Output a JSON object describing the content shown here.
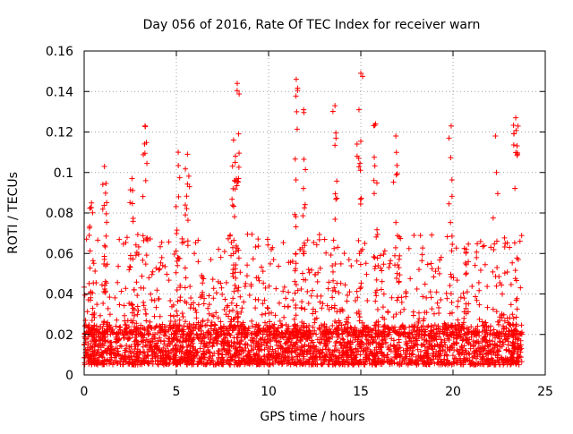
{
  "colors": {
    "series": "#ff0000",
    "axis": "#000000",
    "grid": "#a0a0a0",
    "background": "#ffffff"
  },
  "chart_data": {
    "type": "scatter",
    "title": "Day 056 of 2016, Rate Of TEC Index for receiver warn",
    "xlabel": "GPS time / hours",
    "ylabel": "ROTI / TECUs",
    "xlim": [
      0,
      25
    ],
    "ylim": [
      0,
      0.16
    ],
    "xticks": [
      0,
      5,
      10,
      15,
      20,
      25
    ],
    "yticks": [
      0,
      0.02,
      0.04,
      0.06,
      0.08,
      0.1,
      0.12,
      0.14,
      0.16
    ],
    "xtick_labels": [
      "0",
      "5",
      "10",
      "15",
      "20",
      "25"
    ],
    "ytick_labels": [
      "0",
      "0.02",
      "0.04",
      "0.06",
      "0.08",
      "0.1",
      "0.12",
      "0.14",
      "0.16"
    ],
    "grid": true,
    "marker": "+",
    "series": [
      {
        "name": "ROTI",
        "x_range_hours": [
          0,
          23.75
        ],
        "baseline_band": [
          0.005,
          0.025
        ],
        "notable_peaks": [
          {
            "x": 0.4,
            "y": 0.085
          },
          {
            "x": 1.1,
            "y": 0.103
          },
          {
            "x": 2.6,
            "y": 0.097
          },
          {
            "x": 3.3,
            "y": 0.123
          },
          {
            "x": 5.1,
            "y": 0.11
          },
          {
            "x": 5.6,
            "y": 0.109
          },
          {
            "x": 8.1,
            "y": 0.116
          },
          {
            "x": 8.3,
            "y": 0.144
          },
          {
            "x": 11.5,
            "y": 0.146
          },
          {
            "x": 11.9,
            "y": 0.131
          },
          {
            "x": 13.6,
            "y": 0.133
          },
          {
            "x": 15.0,
            "y": 0.149
          },
          {
            "x": 14.9,
            "y": 0.131
          },
          {
            "x": 15.8,
            "y": 0.124
          },
          {
            "x": 16.9,
            "y": 0.118
          },
          {
            "x": 19.9,
            "y": 0.123
          },
          {
            "x": 22.3,
            "y": 0.118
          },
          {
            "x": 23.4,
            "y": 0.127
          }
        ]
      }
    ]
  }
}
